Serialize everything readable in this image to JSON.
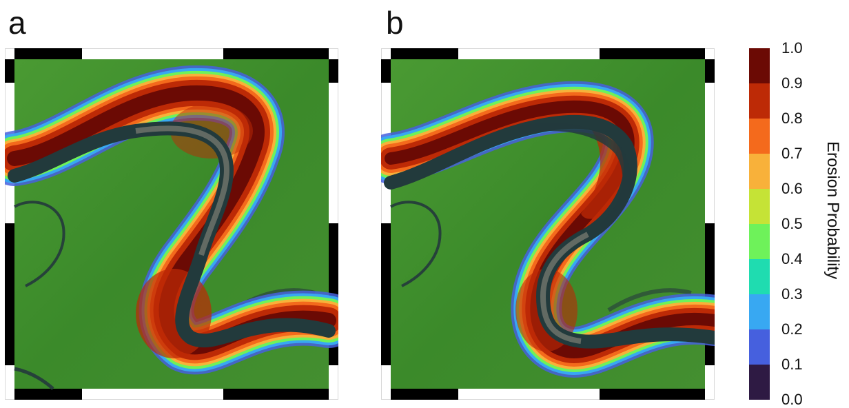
{
  "panels": [
    {
      "label": "a",
      "scene": "satellite image of a meandering river channel with an erosion probability overlay"
    },
    {
      "label": "b",
      "scene": "satellite image of a meandering river channel with an erosion probability overlay, later channel position"
    }
  ],
  "colorbar": {
    "title": "Erosion Probability",
    "ticks": [
      "1.0",
      "0.9",
      "0.8",
      "0.7",
      "0.6",
      "0.5",
      "0.4",
      "0.3",
      "0.2",
      "0.1",
      "0.0"
    ],
    "colors": [
      "#6b0a04",
      "#bd2a06",
      "#f46a1c",
      "#f8b13a",
      "#c5e336",
      "#6ef25a",
      "#1fdcb0",
      "#38a8f2",
      "#4660de",
      "#2e1a43"
    ]
  },
  "colors": {
    "vegetation": "#3f8a2c",
    "channel": "#223a3c",
    "channel_light": "#7e7f73"
  }
}
